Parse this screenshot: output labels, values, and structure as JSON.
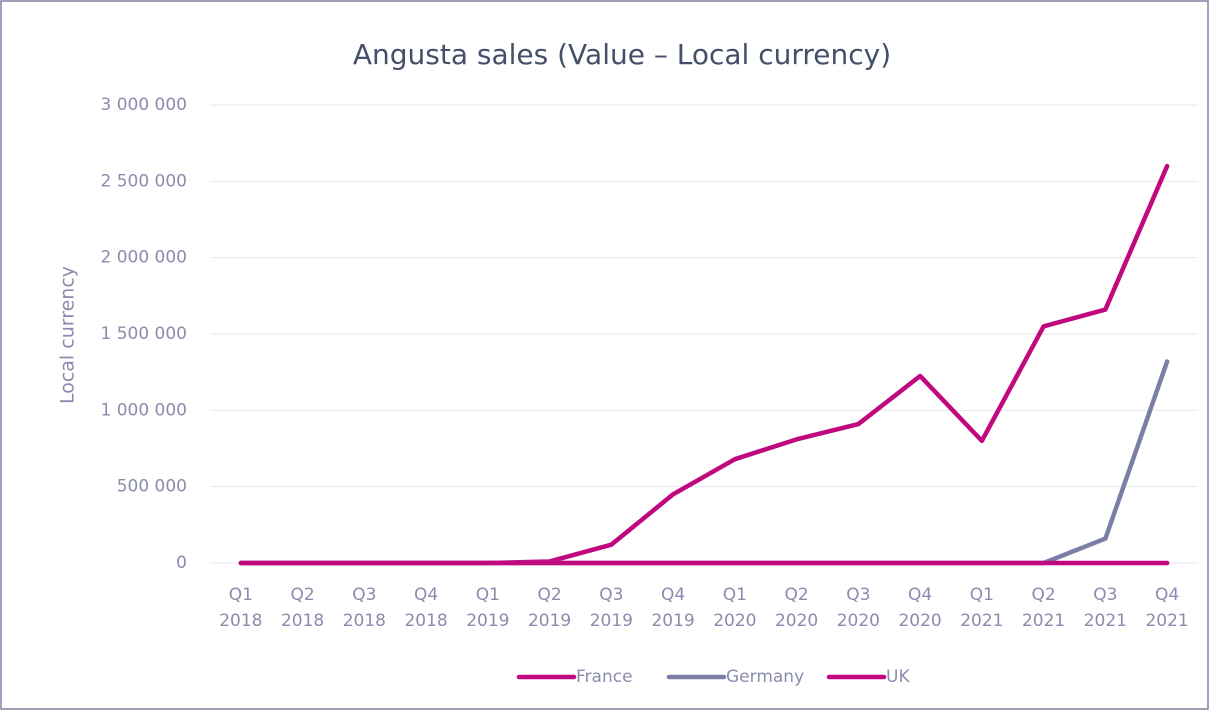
{
  "chart_data": {
    "type": "line",
    "title": "Angusta sales (Value – Local currency)",
    "y_label": "Local currency",
    "categories": [
      "Q1 2018",
      "Q2 2018",
      "Q3 2018",
      "Q4 2018",
      "Q1 2019",
      "Q2 2019",
      "Q3 2019",
      "Q4 2019",
      "Q1 2020",
      "Q2 2020",
      "Q3 2020",
      "Q4 2020",
      "Q1 2021",
      "Q2 2021",
      "Q3 2021",
      "Q4 2021"
    ],
    "series": [
      {
        "name": "France",
        "color": "#c0087f",
        "values": [
          0,
          0,
          0,
          0,
          0,
          10000,
          120000,
          450000,
          680000,
          810000,
          910000,
          1225000,
          800000,
          1550000,
          1660000,
          2600000
        ]
      },
      {
        "name": "Germany",
        "color": "#7b7fa8",
        "values": [
          0,
          0,
          0,
          0,
          0,
          0,
          0,
          0,
          0,
          0,
          0,
          0,
          0,
          0,
          160000,
          1320000
        ]
      },
      {
        "name": "UK",
        "color": "#c0087f",
        "values": [
          0,
          0,
          0,
          0,
          0,
          0,
          0,
          0,
          0,
          0,
          0,
          0,
          0,
          0,
          0,
          0
        ]
      }
    ],
    "ylim": [
      0,
      3000000
    ],
    "yticks": [
      0,
      {
        "value": 500000,
        "label": "500 000"
      },
      {
        "value": 1000000,
        "label": "1 000 000"
      },
      {
        "value": 1500000,
        "label": "1 500 000"
      },
      {
        "value": 2000000,
        "label": "2 000 000"
      },
      {
        "value": 2500000,
        "label": "2 500 000"
      },
      {
        "value": 3000000,
        "label": "3 000 000"
      }
    ],
    "grid": true,
    "legend": "bottom"
  }
}
